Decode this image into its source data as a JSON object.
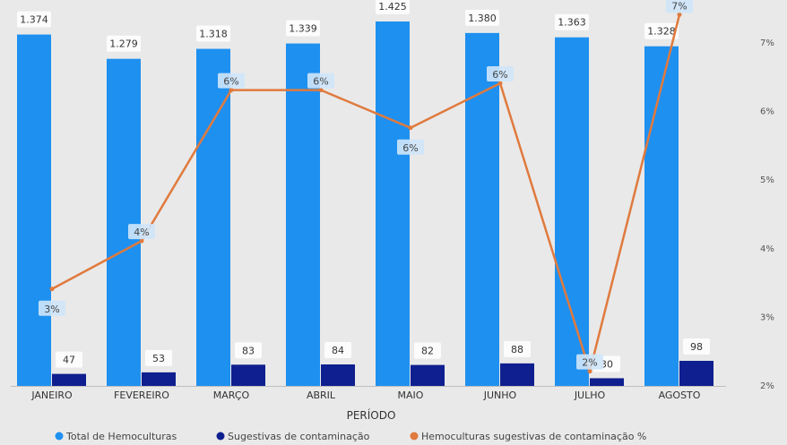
{
  "chart_data": {
    "type": "bar+line",
    "xlabel": "PERÍODO",
    "categories": [
      "JANEIRO",
      "FEVEREIRO",
      "MARÇO",
      "ABRIL",
      "MAIO",
      "JUNHO",
      "JULHO",
      "AGOSTO"
    ],
    "series": [
      {
        "name": "Total de Hemoculturas",
        "kind": "bar",
        "axis": "left",
        "color": "#1e90f0",
        "values": [
          1374,
          1279,
          1318,
          1339,
          1425,
          1380,
          1363,
          1328
        ],
        "labels": [
          "1.374",
          "1.279",
          "1.318",
          "1.339",
          "1.425",
          "1.380",
          "1.363",
          "1.328"
        ]
      },
      {
        "name": "Sugestivas de contaminação",
        "kind": "bar",
        "axis": "left",
        "color": "#0f1f8f",
        "values": [
          47,
          53,
          83,
          84,
          82,
          88,
          30,
          98
        ],
        "labels": [
          "47",
          "53",
          "83",
          "84",
          "82",
          "88",
          "30",
          "98"
        ]
      },
      {
        "name": "Hemoculturas sugestivas de contaminação %",
        "kind": "line",
        "axis": "right",
        "color": "#e07a3e",
        "values": [
          3.4,
          4.1,
          6.3,
          6.3,
          5.75,
          6.4,
          2.2,
          7.4
        ],
        "labels": [
          "3%",
          "4%",
          "6%",
          "6%",
          "6%",
          "6%",
          "2%",
          "7%"
        ]
      }
    ],
    "y_right": {
      "ticks": [
        "2%",
        "3%",
        "4%",
        "5%",
        "6%",
        "7%"
      ],
      "tick_values": [
        2,
        3,
        4,
        5,
        6,
        7
      ],
      "range": [
        2,
        7.4
      ]
    },
    "ylim_left": [
      0,
      1460
    ],
    "grid": false,
    "legend_position": "bottom"
  }
}
